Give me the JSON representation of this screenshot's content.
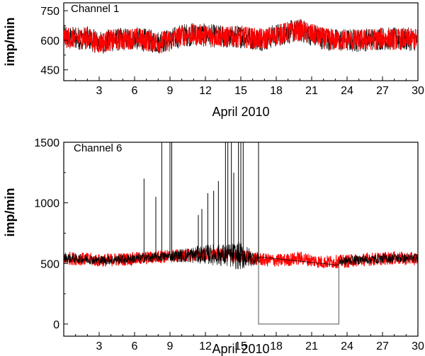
{
  "chart_data": [
    {
      "type": "line",
      "annotation": "Channel 1",
      "xlabel": "April 2010",
      "ylabel": "imp/min",
      "xlim": [
        0,
        30
      ],
      "ylim": [
        395,
        790
      ],
      "xticks": [
        3,
        6,
        9,
        12,
        15,
        18,
        21,
        24,
        27,
        30
      ],
      "xtick_labels": [
        "3",
        "6",
        "9",
        "12",
        "15",
        "18",
        "21",
        "24",
        "27",
        "30"
      ],
      "yticks": [
        450,
        600,
        750
      ],
      "ytick_labels": [
        "450",
        "600",
        "750"
      ],
      "grid": false,
      "series": [
        {
          "role": "raw",
          "color": "#000000",
          "x": [
            0,
            1,
            2,
            3,
            4,
            5,
            6,
            7,
            8,
            9,
            10,
            11,
            12,
            13,
            14,
            15,
            16,
            17,
            18,
            19,
            20,
            21,
            22,
            23,
            24,
            25,
            26,
            27,
            28,
            29,
            30
          ],
          "y": [
            615,
            610,
            612,
            585,
            600,
            605,
            610,
            600,
            590,
            600,
            625,
            630,
            625,
            620,
            615,
            620,
            610,
            605,
            625,
            640,
            650,
            630,
            610,
            600,
            600,
            600,
            605,
            610,
            605,
            605,
            605
          ],
          "band": 60
        },
        {
          "role": "filtered",
          "color": "#ff0000",
          "x": [
            0,
            1,
            2,
            3,
            4,
            5,
            6,
            7,
            8,
            9,
            10,
            11,
            12,
            13,
            14,
            15,
            16,
            17,
            18,
            19,
            20,
            21,
            22,
            23,
            24,
            25,
            26,
            27,
            28,
            29,
            30
          ],
          "y": [
            615,
            610,
            612,
            585,
            600,
            605,
            610,
            600,
            590,
            600,
            625,
            630,
            625,
            620,
            615,
            620,
            610,
            605,
            625,
            640,
            650,
            630,
            610,
            600,
            600,
            600,
            605,
            610,
            605,
            605,
            605
          ],
          "band": 55
        }
      ]
    },
    {
      "type": "line",
      "annotation": "Channel 6",
      "xlabel": "April 2010",
      "ylabel": "imp/min",
      "xlim": [
        0,
        30
      ],
      "ylim": [
        -100,
        1500
      ],
      "xticks": [
        3,
        6,
        9,
        12,
        15,
        18,
        21,
        24,
        27,
        30
      ],
      "xtick_labels": [
        "3",
        "6",
        "9",
        "12",
        "15",
        "18",
        "21",
        "24",
        "27",
        "30"
      ],
      "yticks": [
        0,
        500,
        1000,
        1500
      ],
      "ytick_labels": [
        "0",
        "500",
        "1000",
        "1500"
      ],
      "grid": false,
      "series": [
        {
          "role": "filtered",
          "color": "#ff0000",
          "x": [
            0,
            1,
            2,
            3,
            4,
            5,
            6,
            7,
            8,
            9,
            10,
            11,
            12,
            13,
            14,
            15,
            16,
            17,
            18,
            19,
            20,
            21,
            22,
            23,
            24,
            25,
            26,
            27,
            28,
            29,
            30
          ],
          "y": [
            545,
            540,
            535,
            525,
            530,
            535,
            540,
            545,
            555,
            560,
            565,
            570,
            575,
            570,
            565,
            560,
            545,
            530,
            525,
            530,
            545,
            525,
            510,
            515,
            520,
            530,
            535,
            540,
            545,
            540,
            540
          ],
          "band": 55
        },
        {
          "role": "raw",
          "color": "#000000",
          "noise_envelope": {
            "x": [
              0,
              9,
              10,
              11,
              12,
              13,
              14,
              15,
              16.5
            ],
            "y": [
              40,
              40,
              60,
              70,
              80,
              90,
              100,
              120,
              40
            ]
          },
          "spikes": [
            {
              "x": 6.8,
              "y": 1200
            },
            {
              "x": 7.8,
              "y": 1050
            },
            {
              "x": 8.3,
              "y": 1500
            },
            {
              "x": 9.0,
              "y": 1500
            },
            {
              "x": 9.15,
              "y": 1500
            },
            {
              "x": 11.4,
              "y": 900
            },
            {
              "x": 11.7,
              "y": 950
            },
            {
              "x": 12.2,
              "y": 1080
            },
            {
              "x": 12.7,
              "y": 1100
            },
            {
              "x": 13.1,
              "y": 1180
            },
            {
              "x": 13.7,
              "y": 1500
            },
            {
              "x": 13.9,
              "y": 1500
            },
            {
              "x": 14.2,
              "y": 1500
            },
            {
              "x": 14.4,
              "y": 1250
            },
            {
              "x": 14.8,
              "y": 1500
            },
            {
              "x": 15.0,
              "y": 1500
            },
            {
              "x": 15.2,
              "y": 1500
            },
            {
              "x": 16.5,
              "y": 1500
            }
          ],
          "dropout": {
            "x_start": 16.5,
            "x_end": 23.3,
            "y": 0
          }
        }
      ]
    }
  ]
}
